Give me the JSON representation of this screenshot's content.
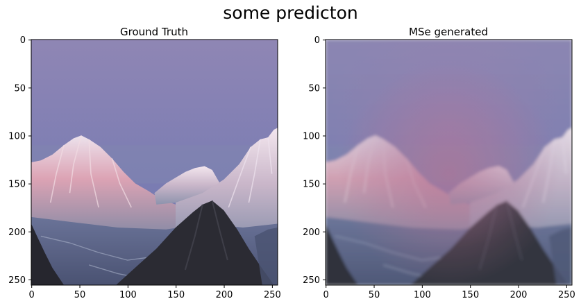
{
  "suptitle": "some predicton",
  "colors": {
    "sky_top": "#8f86b4",
    "sky_bottom": "#6e74a8",
    "peak_light": "#e9c4cf",
    "peak_pink": "#d98b9c",
    "ridge_dark": "#2c2c34",
    "valley": "#5b6588"
  },
  "chart_data": [
    {
      "type": "image",
      "title": "Ground Truth",
      "image_size": [
        256,
        256
      ],
      "xlim": [
        0,
        255
      ],
      "ylim": [
        255,
        0
      ],
      "xticks": [
        0,
        50,
        100,
        150,
        200,
        250
      ],
      "yticks": [
        0,
        50,
        100,
        150,
        200,
        250
      ],
      "content": "mountain-sunset"
    },
    {
      "type": "image",
      "title": "MSe generated",
      "image_size": [
        256,
        256
      ],
      "xlim": [
        0,
        255
      ],
      "ylim": [
        255,
        0
      ],
      "xticks": [
        0,
        50,
        100,
        150,
        200,
        250
      ],
      "yticks": [
        0,
        50,
        100,
        150,
        200,
        250
      ],
      "content": "mountain-sunset-blurred"
    }
  ]
}
